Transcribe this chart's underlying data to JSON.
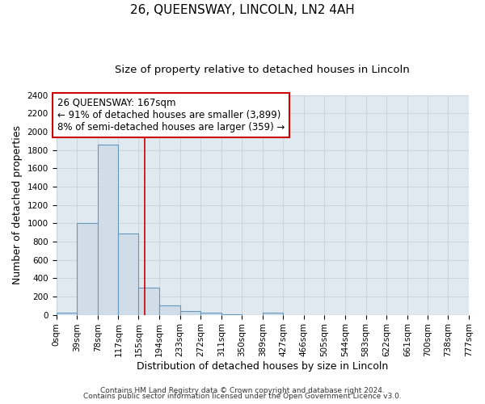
{
  "title": "26, QUEENSWAY, LINCOLN, LN2 4AH",
  "subtitle": "Size of property relative to detached houses in Lincoln",
  "xlabel": "Distribution of detached houses by size in Lincoln",
  "ylabel": "Number of detached properties",
  "bin_edges": [
    0,
    39,
    78,
    117,
    155,
    194,
    233,
    272,
    311,
    350,
    389,
    427,
    466,
    505,
    544,
    583,
    622,
    661,
    700,
    738,
    777
  ],
  "bin_counts": [
    20,
    1000,
    1860,
    890,
    300,
    100,
    45,
    20,
    5,
    0,
    20,
    0,
    0,
    0,
    0,
    0,
    0,
    0,
    0,
    0
  ],
  "bar_facecolor": "#d0dce8",
  "bar_edgecolor": "#6699bb",
  "property_size": 167,
  "red_line_color": "#cc0000",
  "annotation_line1": "26 QUEENSWAY: 167sqm",
  "annotation_line2": "← 91% of detached houses are smaller (3,899)",
  "annotation_line3": "8% of semi-detached houses are larger (359) →",
  "annotation_box_edgecolor": "#cc0000",
  "annotation_box_facecolor": "#ffffff",
  "ylim": [
    0,
    2400
  ],
  "yticks": [
    0,
    200,
    400,
    600,
    800,
    1000,
    1200,
    1400,
    1600,
    1800,
    2000,
    2200,
    2400
  ],
  "xtick_labels": [
    "0sqm",
    "39sqm",
    "78sqm",
    "117sqm",
    "155sqm",
    "194sqm",
    "233sqm",
    "272sqm",
    "311sqm",
    "350sqm",
    "389sqm",
    "427sqm",
    "466sqm",
    "505sqm",
    "544sqm",
    "583sqm",
    "622sqm",
    "661sqm",
    "700sqm",
    "738sqm",
    "777sqm"
  ],
  "grid_color": "#c8d0da",
  "bg_color": "#e0e8f0",
  "footer_line1": "Contains HM Land Registry data © Crown copyright and database right 2024.",
  "footer_line2": "Contains public sector information licensed under the Open Government Licence v3.0.",
  "title_fontsize": 11,
  "subtitle_fontsize": 9.5,
  "axis_label_fontsize": 9,
  "tick_fontsize": 7.5,
  "annotation_fontsize": 8.5,
  "footer_fontsize": 6.5
}
